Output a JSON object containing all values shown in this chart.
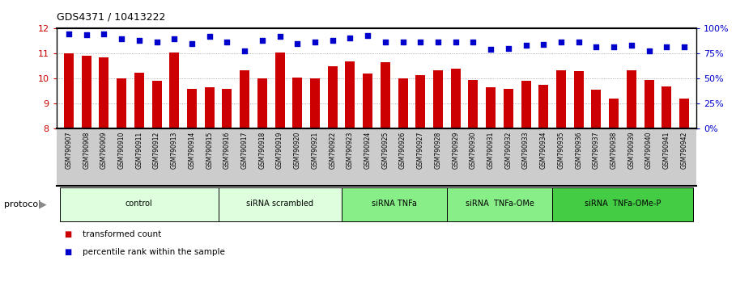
{
  "title": "GDS4371 / 10413222",
  "samples": [
    "GSM790907",
    "GSM790908",
    "GSM790909",
    "GSM790910",
    "GSM790911",
    "GSM790912",
    "GSM790913",
    "GSM790914",
    "GSM790915",
    "GSM790916",
    "GSM790917",
    "GSM790918",
    "GSM790919",
    "GSM790920",
    "GSM790921",
    "GSM790922",
    "GSM790923",
    "GSM790924",
    "GSM790925",
    "GSM790926",
    "GSM790927",
    "GSM790928",
    "GSM790929",
    "GSM790930",
    "GSM790931",
    "GSM790932",
    "GSM790933",
    "GSM790934",
    "GSM790935",
    "GSM790936",
    "GSM790937",
    "GSM790938",
    "GSM790939",
    "GSM790940",
    "GSM790941",
    "GSM790942"
  ],
  "bar_values": [
    11.0,
    10.9,
    10.85,
    10.0,
    10.25,
    9.9,
    11.05,
    9.6,
    9.65,
    9.6,
    10.35,
    10.0,
    11.05,
    10.05,
    10.0,
    10.5,
    10.7,
    10.2,
    10.65,
    10.0,
    10.15,
    10.35,
    10.4,
    9.95,
    9.65,
    9.6,
    9.9,
    9.75,
    10.35,
    10.3,
    9.55,
    9.2,
    10.35,
    9.95,
    9.7,
    9.2
  ],
  "percentile_values": [
    95,
    94,
    95,
    90,
    88,
    87,
    90,
    85,
    92,
    87,
    78,
    88,
    92,
    85,
    87,
    88,
    91,
    93,
    87,
    87,
    87,
    87,
    87,
    87,
    79,
    80,
    83,
    84,
    87,
    87,
    82,
    82,
    83,
    78,
    82,
    82
  ],
  "ylim_left": [
    8,
    12
  ],
  "ylim_right": [
    0,
    100
  ],
  "yticks_left": [
    8,
    9,
    10,
    11,
    12
  ],
  "yticks_right": [
    0,
    25,
    50,
    75,
    100
  ],
  "ytick_labels_right": [
    "0%",
    "25%",
    "50%",
    "75%",
    "100%"
  ],
  "bar_color": "#cc0000",
  "scatter_color": "#0000cc",
  "grid_color": "#999999",
  "tick_bg_color": "#cccccc",
  "groups": [
    {
      "label": "control",
      "start": 0,
      "end": 9,
      "color": "#ddffdd"
    },
    {
      "label": "siRNA scrambled",
      "start": 9,
      "end": 16,
      "color": "#ddffdd"
    },
    {
      "label": "siRNA TNFa",
      "start": 16,
      "end": 22,
      "color": "#88ee88"
    },
    {
      "label": "siRNA  TNFa-OMe",
      "start": 22,
      "end": 28,
      "color": "#88ee88"
    },
    {
      "label": "siRNA  TNFa-OMe-P",
      "start": 28,
      "end": 36,
      "color": "#44cc44"
    }
  ],
  "legend_items": [
    {
      "label": "transformed count",
      "color": "#cc0000"
    },
    {
      "label": "percentile rank within the sample",
      "color": "#0000cc"
    }
  ],
  "protocol_label": "protocol"
}
